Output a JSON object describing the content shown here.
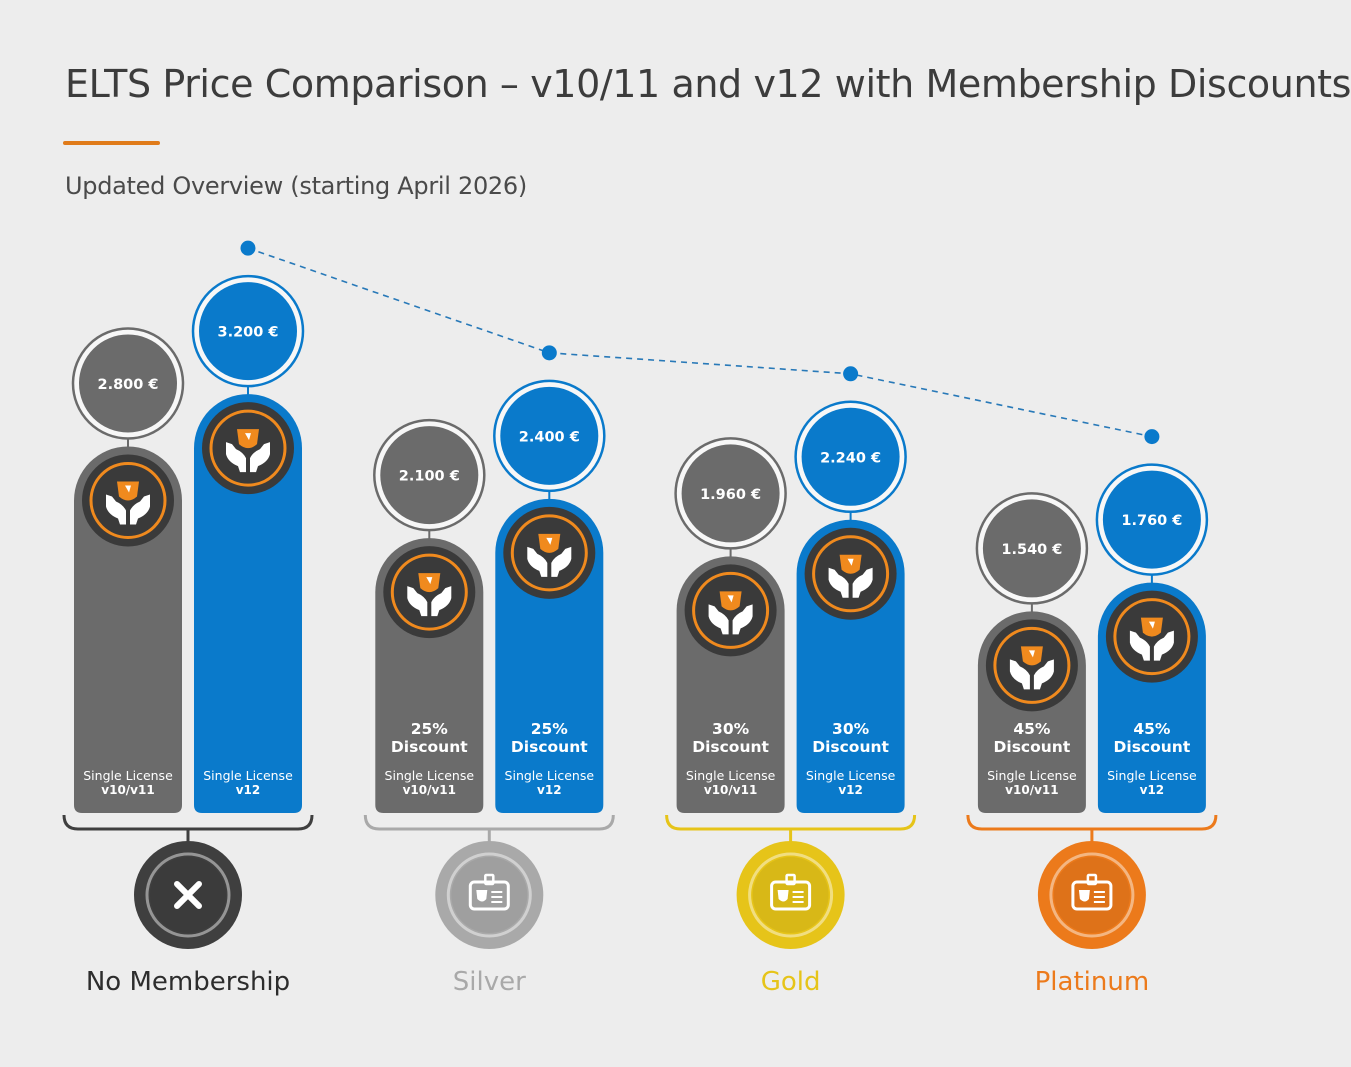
{
  "header": {
    "title": "ELTS Price Comparison – v10/11 and v12 with Membership Discounts",
    "subtitle": "Updated Overview (starting April 2026)"
  },
  "colors": {
    "background": "#ededed",
    "accent": "#e07b1a",
    "v11_bar": "#6b6b6b",
    "v12_bar": "#0a7acb",
    "none": "#3f3f3f",
    "silver": "#a9a9a9",
    "gold": "#e6c419",
    "platinum": "#ec7a1b",
    "trend_line": "#2879b8",
    "logo_orange": "#f08a1e",
    "icon_disc": "#3a3a3a"
  },
  "icons": {
    "license": "helping-hands-typo3-logo-icon",
    "no_membership": "close-icon",
    "membership": "id-badge-icon"
  },
  "chart_data": {
    "type": "bar",
    "title": "ELTS Price Comparison – v10/11 and v12 with Membership Discounts",
    "subtitle": "Updated Overview (starting April 2026)",
    "currency": "€",
    "categories": [
      "No Membership",
      "Silver",
      "Gold",
      "Platinum"
    ],
    "series": [
      {
        "name": "Single License v10/v11",
        "label_line1": "Single License",
        "label_line2": "v10/v11",
        "values": [
          2800,
          2100,
          1960,
          1540
        ],
        "value_labels": [
          "2.800 €",
          "2.100 €",
          "1.960 €",
          "1.540 €"
        ]
      },
      {
        "name": "Single License v12",
        "label_line1": "Single License",
        "label_line2": "v12",
        "values": [
          3200,
          2400,
          2240,
          1760
        ],
        "value_labels": [
          "3.200 €",
          "2.400 €",
          "2.240 €",
          "1.760 €"
        ]
      }
    ],
    "discounts": [
      null,
      {
        "pct": "25%",
        "word": "Discount"
      },
      {
        "pct": "30%",
        "word": "Discount"
      },
      {
        "pct": "45%",
        "word": "Discount"
      }
    ],
    "trend_line": {
      "series": "Single License v12",
      "style": "dashed"
    },
    "memberships": [
      {
        "label": "No Membership",
        "icon": "close-icon",
        "color_key": "none"
      },
      {
        "label": "Silver",
        "icon": "id-badge-icon",
        "color_key": "silver"
      },
      {
        "label": "Gold",
        "icon": "id-badge-icon",
        "color_key": "gold"
      },
      {
        "label": "Platinum",
        "icon": "id-badge-icon",
        "color_key": "platinum"
      }
    ],
    "grid": false,
    "legend": "none"
  }
}
